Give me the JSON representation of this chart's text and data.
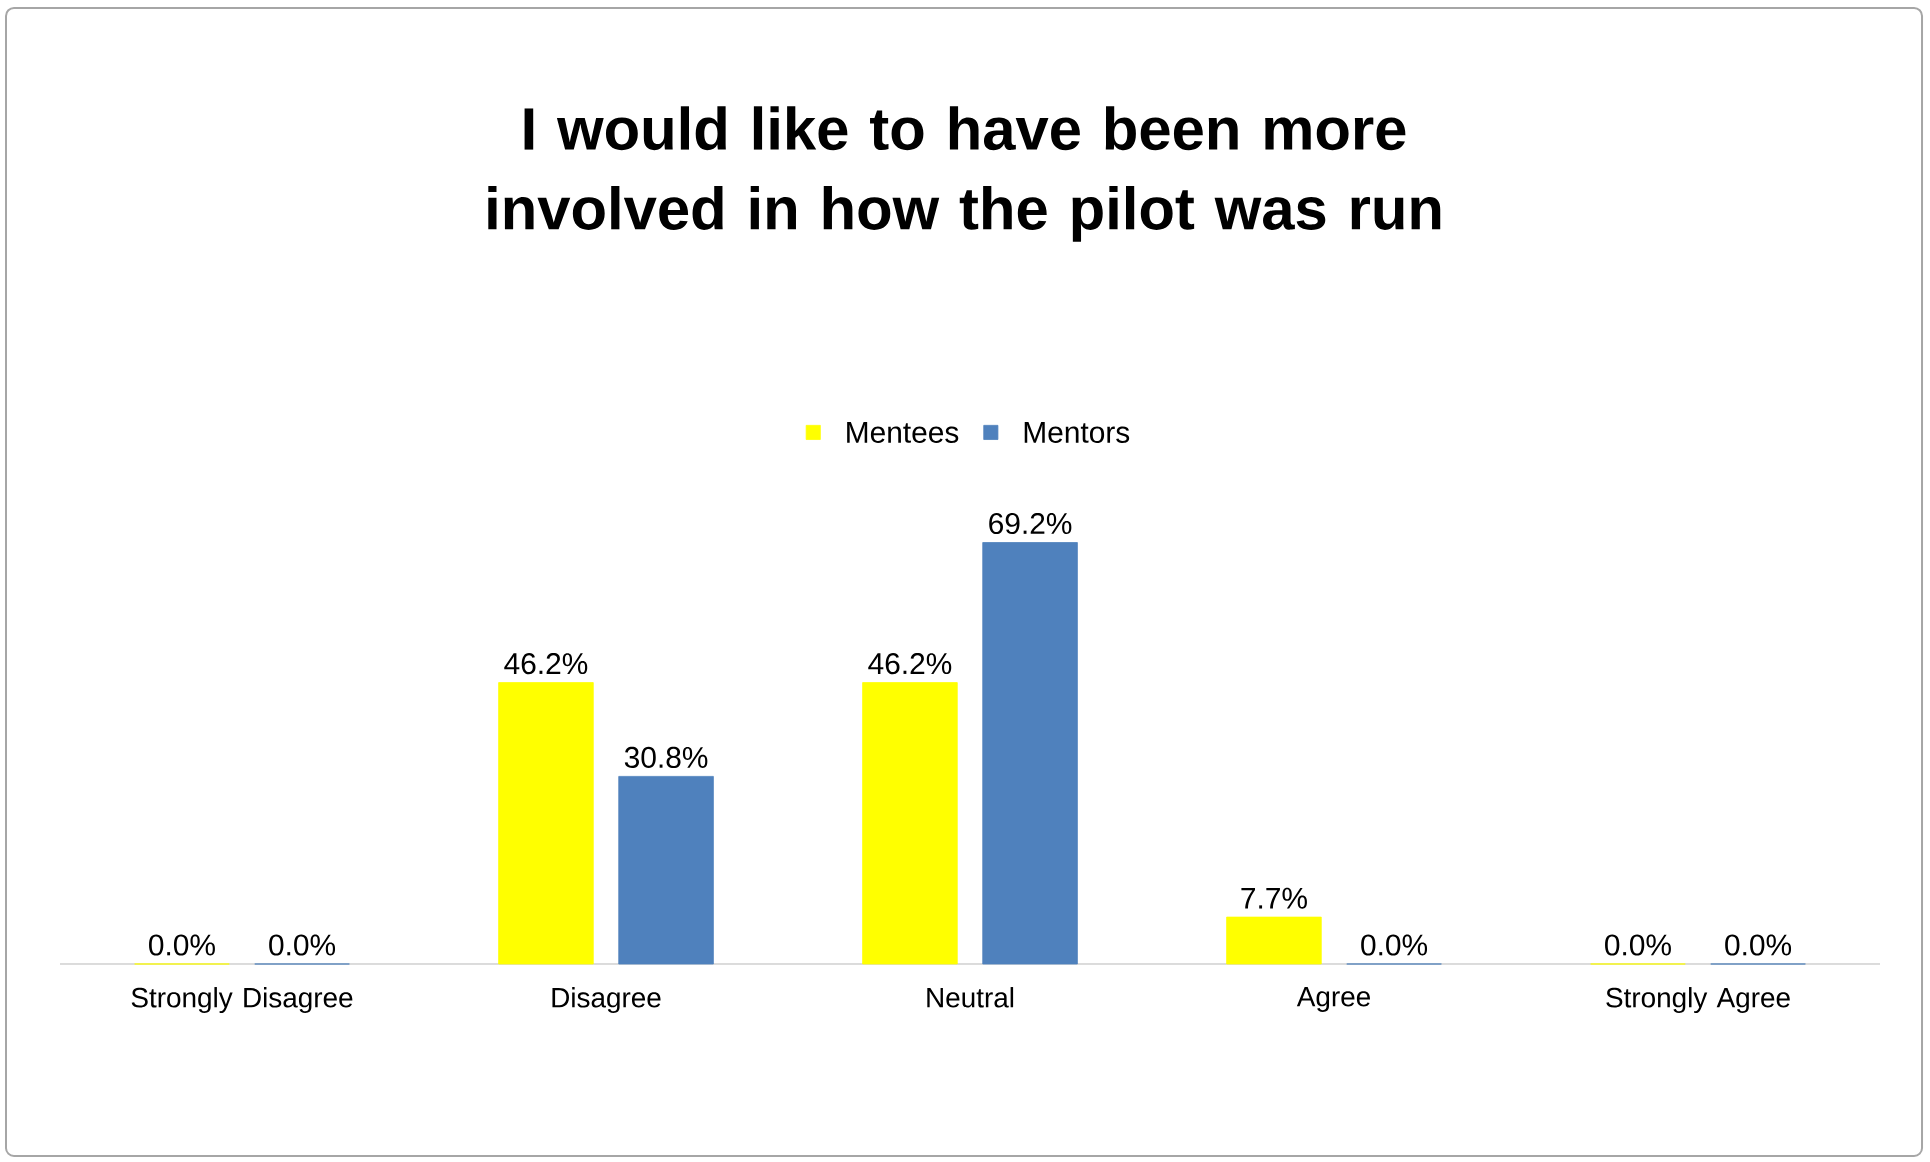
{
  "chart_data": {
    "type": "bar",
    "title": "I would like to have been more involved in how the pilot was run",
    "categories": [
      "Strongly Disagree",
      "Disagree",
      "Neutral",
      "Agree",
      "Strongly Agree"
    ],
    "series": [
      {
        "name": "Mentees",
        "color": "#ffff00",
        "values": [
          0.0,
          46.2,
          46.2,
          7.7,
          0.0
        ],
        "value_labels": [
          "0.0%",
          "46.2%",
          "46.2%",
          "7.7%",
          "0.0%"
        ]
      },
      {
        "name": "Mentors",
        "color": "#4f81bd",
        "values": [
          0.0,
          30.8,
          69.2,
          0.0,
          0.0
        ],
        "value_labels": [
          "0.0%",
          "30.8%",
          "69.2%",
          "0.0%",
          "0.0%"
        ]
      }
    ],
    "legend": "top"
  }
}
